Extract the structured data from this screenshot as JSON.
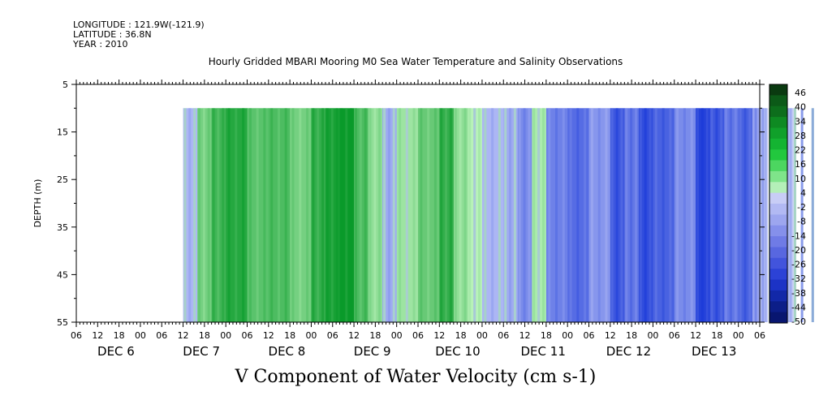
{
  "header": {
    "longitude": "LONGITUDE : 121.9W(-121.9)",
    "latitude": "LATITUDE : 36.8N",
    "year": "YEAR : 2010",
    "title": "Hourly Gridded MBARI Mooring M0 Sea Water Temperature and Salinity Observations"
  },
  "colors": {
    "positive_strong": "#0a9a2a",
    "positive_light": "#b8f2b8",
    "negative_light": "#b8c0f6",
    "negative_strong": "#1838d8",
    "colorbar": [
      "#0a3a10",
      "#0c5a18",
      "#0d6e1c",
      "#0e8a22",
      "#10a02a",
      "#14b432",
      "#22c83e",
      "#4cd660",
      "#7fe48a",
      "#b4efb8",
      "#c8cdf6",
      "#b2b9f3",
      "#9da6ef",
      "#8590eb",
      "#6f7be6",
      "#5867e0",
      "#4254dc",
      "#2c42d6",
      "#1c33c6",
      "#1228a8",
      "#0c1e88",
      "#081670"
    ]
  },
  "chart_data": {
    "type": "heatmap",
    "title": "Hourly Gridded MBARI Mooring M0 Sea Water Temperature and Salinity Observations",
    "xlabel": "V Component of Water Velocity (cm s-1)",
    "ylabel": "DEPTH (m)",
    "y_ticks": [
      "5",
      "15",
      "25",
      "35",
      "45",
      "55"
    ],
    "ylim": [
      55,
      5
    ],
    "x_hour_ticks": [
      "06",
      "12",
      "18",
      "00",
      "06",
      "12",
      "18",
      "00",
      "06",
      "12",
      "18",
      "00",
      "06",
      "12",
      "18",
      "00",
      "06",
      "12",
      "18",
      "00",
      "06",
      "12",
      "18",
      "00",
      "06",
      "12",
      "18",
      "00",
      "06",
      "12",
      "18",
      "00",
      "06"
    ],
    "x_day_labels": [
      "DEC  6",
      "DEC  7",
      "DEC  8",
      "DEC  9",
      "DEC 10",
      "DEC 11",
      "DEC 12",
      "DEC 13"
    ],
    "data_start_hour": 12,
    "data_depth_range": [
      10,
      55
    ],
    "colorbar_levels": [
      "46",
      "40",
      "34",
      "28",
      "22",
      "16",
      "10",
      "4",
      "-2",
      "-8",
      "-14",
      "-20",
      "-26",
      "-32",
      "-38",
      "-44",
      "-50"
    ],
    "velocity_profile": {
      "hours_from_dec6_00": [
        12,
        16,
        20,
        24,
        30,
        36,
        42,
        48,
        52,
        56,
        60,
        64,
        68,
        72,
        78,
        84,
        88,
        92,
        96,
        102,
        106,
        110,
        114,
        120,
        126,
        132,
        136,
        140,
        144,
        150,
        156,
        160,
        164,
        168,
        172,
        176,
        180,
        186,
        192,
        198,
        204,
        210,
        216,
        222,
        226,
        230,
        234
      ],
      "velocity_cm_s": [
        -2,
        10,
        18,
        22,
        14,
        16,
        10,
        20,
        24,
        26,
        16,
        6,
        -4,
        4,
        12,
        20,
        6,
        0,
        -2,
        -4,
        -10,
        2,
        -12,
        -16,
        -8,
        -20,
        -14,
        -22,
        -18,
        -10,
        -24,
        -20,
        -14,
        -18,
        -8,
        -16,
        -12,
        -14,
        0,
        -18,
        -10,
        -22,
        -6,
        -20,
        -16,
        -8,
        0
      ]
    }
  }
}
